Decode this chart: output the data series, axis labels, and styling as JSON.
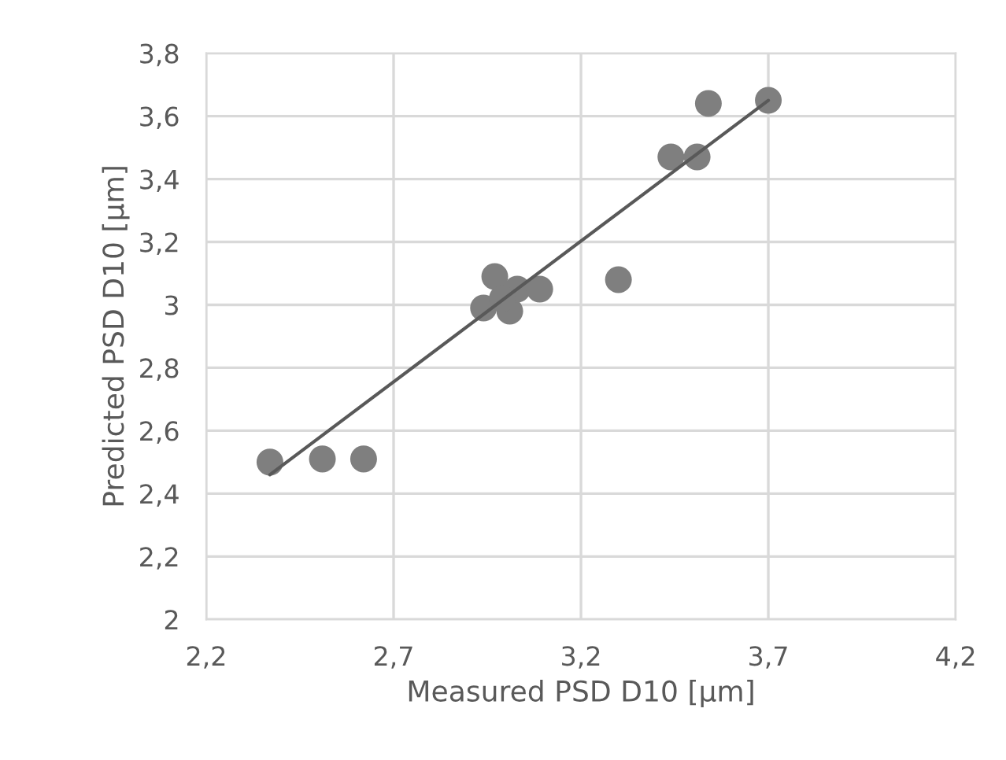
{
  "chart_data": {
    "type": "scatter",
    "xlabel": "Measured PSD D10 [µm]",
    "ylabel": "Predicted PSD D10 [µm]",
    "series": [
      {
        "marker": "circle",
        "color": "#7f7f7f",
        "x": [
          2.37,
          2.51,
          2.62,
          2.94,
          2.97,
          3.01,
          3.03,
          3.09,
          2.99,
          3.3,
          3.44,
          3.51,
          3.54,
          3.7
        ],
        "values": [
          2.5,
          2.51,
          2.51,
          2.99,
          3.09,
          2.98,
          3.05,
          3.05,
          3.02,
          3.08,
          3.47,
          3.47,
          3.64,
          3.65
        ]
      },
      {
        "type": "line",
        "marker": "none",
        "color": "#595959",
        "x": [
          2.37,
          3.7
        ],
        "values": [
          2.46,
          3.65
        ]
      }
    ],
    "xlim": [
      2.2,
      4.2
    ],
    "xticks": [
      {
        "value": 2.2,
        "label": "2,2"
      },
      {
        "value": 2.7,
        "label": "2,7"
      },
      {
        "value": 3.2,
        "label": "3,2"
      },
      {
        "value": 3.7,
        "label": "3,7"
      },
      {
        "value": 4.2,
        "label": "4,2"
      }
    ],
    "ylim": [
      2.0,
      3.8
    ],
    "yticks": [
      {
        "value": 2.0,
        "label": "2"
      },
      {
        "value": 2.2,
        "label": "2,2"
      },
      {
        "value": 2.4,
        "label": "2,4"
      },
      {
        "value": 2.6,
        "label": "2,6"
      },
      {
        "value": 2.8,
        "label": "2,8"
      },
      {
        "value": 3.0,
        "label": "3"
      },
      {
        "value": 3.2,
        "label": "3,2"
      },
      {
        "value": 3.4,
        "label": "3,4"
      },
      {
        "value": 3.6,
        "label": "3,6"
      },
      {
        "value": 3.8,
        "label": "3,8"
      }
    ],
    "grid": true,
    "legend": false
  }
}
